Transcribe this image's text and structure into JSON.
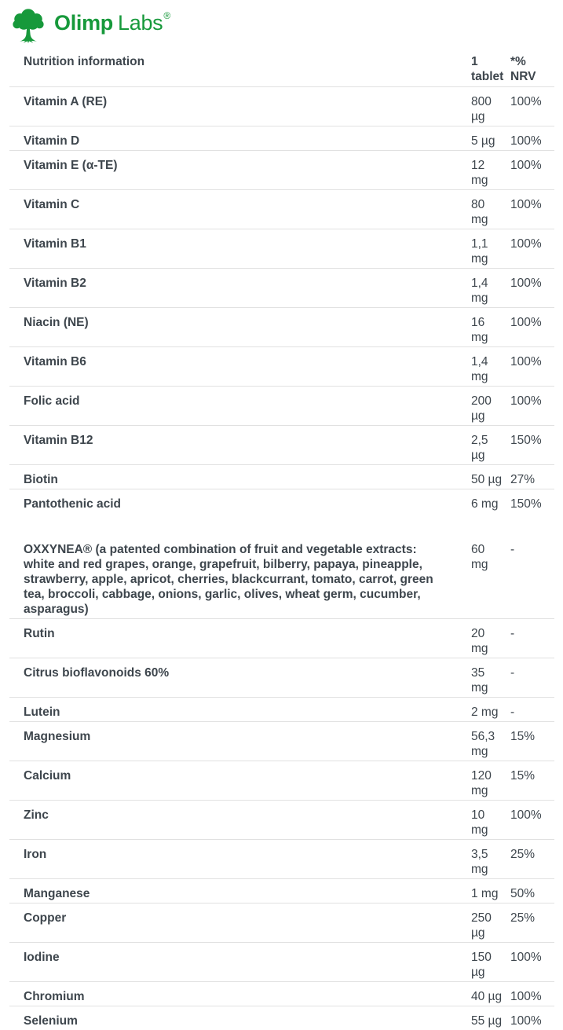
{
  "brand": {
    "name_bold": "Olimp",
    "name_regular": "Labs",
    "registered": "®",
    "logo_green": "#17993b"
  },
  "colors": {
    "text": "#3e464d",
    "border": "#e1e1e1",
    "background": "#ffffff"
  },
  "table": {
    "headers": {
      "nutrient": "Nutrition information",
      "per_tablet": "1\ntablet",
      "nrv": "*%\nNRV"
    },
    "rows": [
      {
        "label": "Vitamin A (RE)",
        "value": "800\nµg",
        "nrv": "100%"
      },
      {
        "label": "Vitamin D",
        "value": "5 µg",
        "nrv": "100%"
      },
      {
        "label": "Vitamin E (α-TE)",
        "value": "12\nmg",
        "nrv": "100%"
      },
      {
        "label": "Vitamin C",
        "value": "80\nmg",
        "nrv": "100%"
      },
      {
        "label": "Vitamin B1",
        "value": "1,1\nmg",
        "nrv": "100%"
      },
      {
        "label": "Vitamin B2",
        "value": "1,4\nmg",
        "nrv": "100%"
      },
      {
        "label": "Niacin (NE)",
        "value": "16\nmg",
        "nrv": "100%"
      },
      {
        "label": "Vitamin B6",
        "value": "1,4\nmg",
        "nrv": "100%"
      },
      {
        "label": "Folic acid",
        "value": "200\nµg",
        "nrv": "100%"
      },
      {
        "label": "Vitamin B12",
        "value": "2,5\nµg",
        "nrv": "150%"
      },
      {
        "label": "Biotin",
        "value": "50 µg",
        "nrv": "27%"
      },
      {
        "label": "Pantothenic acid",
        "value": "6 mg",
        "nrv": "150%",
        "section_end": true
      },
      {
        "label": "OXXYNEA® (a patented combination of fruit and vegetable extracts: white and red grapes, orange, grapefruit, bilberry, papaya, pineapple, strawberry, apple, apricot, cherries, blackcurrant, tomato, carrot, green tea, broccoli, cabbage, onions, garlic, olives, wheat germ, cucumber, asparagus)",
        "value": "60\nmg",
        "nrv": "-"
      },
      {
        "label": "Rutin",
        "value": "20\nmg",
        "nrv": "-"
      },
      {
        "label": "Citrus bioflavonoids 60%",
        "value": "35\nmg",
        "nrv": "-"
      },
      {
        "label": "Lutein",
        "value": "2 mg",
        "nrv": "-"
      },
      {
        "label": "Magnesium",
        "value": "56,3\nmg",
        "nrv": "15%"
      },
      {
        "label": "Calcium",
        "value": "120\nmg",
        "nrv": "15%"
      },
      {
        "label": "Zinc",
        "value": "10\nmg",
        "nrv": "100%"
      },
      {
        "label": "Iron",
        "value": "3,5\nmg",
        "nrv": "25%"
      },
      {
        "label": "Manganese",
        "value": "1 mg",
        "nrv": "50%"
      },
      {
        "label": "Copper",
        "value": "250\nµg",
        "nrv": "25%"
      },
      {
        "label": "Iodine",
        "value": "150\nµg",
        "nrv": "100%"
      },
      {
        "label": "Chromium",
        "value": "40 µg",
        "nrv": "100%"
      },
      {
        "label": "Selenium",
        "value": "55 µg",
        "nrv": "100%"
      }
    ]
  }
}
